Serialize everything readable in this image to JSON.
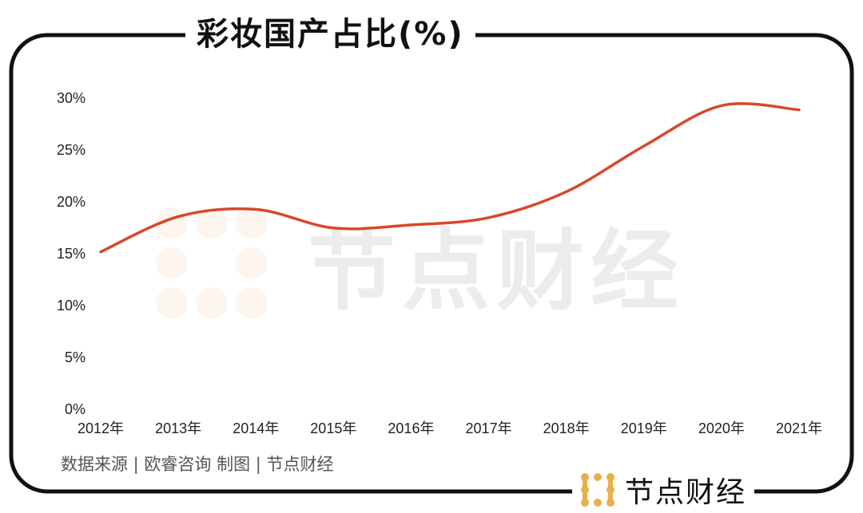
{
  "title": "彩妆国产占比(%)",
  "source": "数据来源 | 欧睿咨询  制图 | 节点财经",
  "brand": "节点财经",
  "watermark": "节点财经",
  "colors": {
    "line": "#d9472a",
    "logo": "#e8b04a",
    "frame": "#111111"
  },
  "chart_data": {
    "type": "line",
    "title": "彩妆国产占比(%)",
    "categories": [
      "2012年",
      "2013年",
      "2014年",
      "2015年",
      "2016年",
      "2017年",
      "2018年",
      "2019年",
      "2020年",
      "2021年"
    ],
    "series": [
      {
        "values": [
          15.1,
          18.5,
          19.2,
          17.4,
          17.7,
          18.4,
          20.9,
          25.3,
          29.2,
          28.8
        ]
      }
    ],
    "ylim": [
      0,
      30
    ],
    "yticks": [
      "0%",
      "5%",
      "10%",
      "15%",
      "20%",
      "25%",
      "30%"
    ],
    "grid": false,
    "smooth": true
  }
}
